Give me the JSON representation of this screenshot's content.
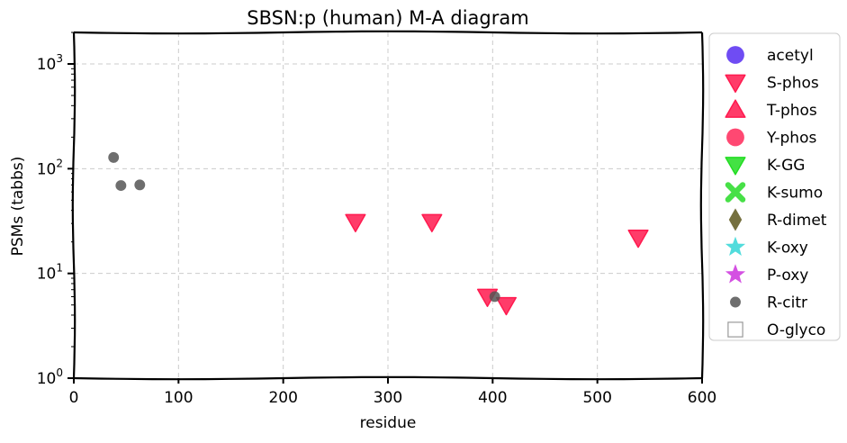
{
  "chart_data": {
    "type": "scatter",
    "title": "SBSN:p (human) M-A diagram",
    "xlabel": "residue",
    "ylabel": "PSMs (tabbs)",
    "xlim": [
      0,
      600
    ],
    "ylim": [
      1,
      2000
    ],
    "yscale": "log",
    "grid": true,
    "legend_position": "right",
    "x_ticks": [
      "0",
      "100",
      "200",
      "300",
      "400",
      "500",
      "600"
    ],
    "y_ticks": [
      {
        "base": "10",
        "exp": "0",
        "value": 1
      },
      {
        "base": "10",
        "exp": "1",
        "value": 10
      },
      {
        "base": "10",
        "exp": "2",
        "value": 100
      },
      {
        "base": "10",
        "exp": "3",
        "value": 1000
      }
    ],
    "series": [
      {
        "name": "acetyl",
        "marker": "circle",
        "color": "#4b1ff0",
        "points": []
      },
      {
        "name": "S-phos",
        "marker": "triangle-down",
        "color": "#ff1a4f",
        "points": [
          [
            269,
            31
          ],
          [
            342,
            31
          ],
          [
            395,
            6
          ],
          [
            413,
            5
          ],
          [
            539,
            22
          ]
        ]
      },
      {
        "name": "T-phos",
        "marker": "triangle-up",
        "color": "#ff1a4f",
        "points": []
      },
      {
        "name": "Y-phos",
        "marker": "circle",
        "color": "#ff1a4f",
        "points": []
      },
      {
        "name": "K-GG",
        "marker": "triangle-down",
        "color": "#22dd22",
        "points": []
      },
      {
        "name": "K-sumo",
        "marker": "x",
        "color": "#33dd33",
        "points": []
      },
      {
        "name": "R-dimet",
        "marker": "diamond",
        "color": "#66602a",
        "points": []
      },
      {
        "name": "K-oxy",
        "marker": "star",
        "color": "#33d6d6",
        "points": []
      },
      {
        "name": "P-oxy",
        "marker": "star",
        "color": "#cc33dd",
        "points": []
      },
      {
        "name": "R-citr",
        "marker": "small-circle",
        "color": "#555555",
        "points": [
          [
            38,
            128
          ],
          [
            45,
            69
          ],
          [
            63,
            70
          ],
          [
            402,
            6
          ]
        ]
      },
      {
        "name": "O-glyco",
        "marker": "square-open",
        "color": "#999999",
        "points": []
      }
    ]
  }
}
